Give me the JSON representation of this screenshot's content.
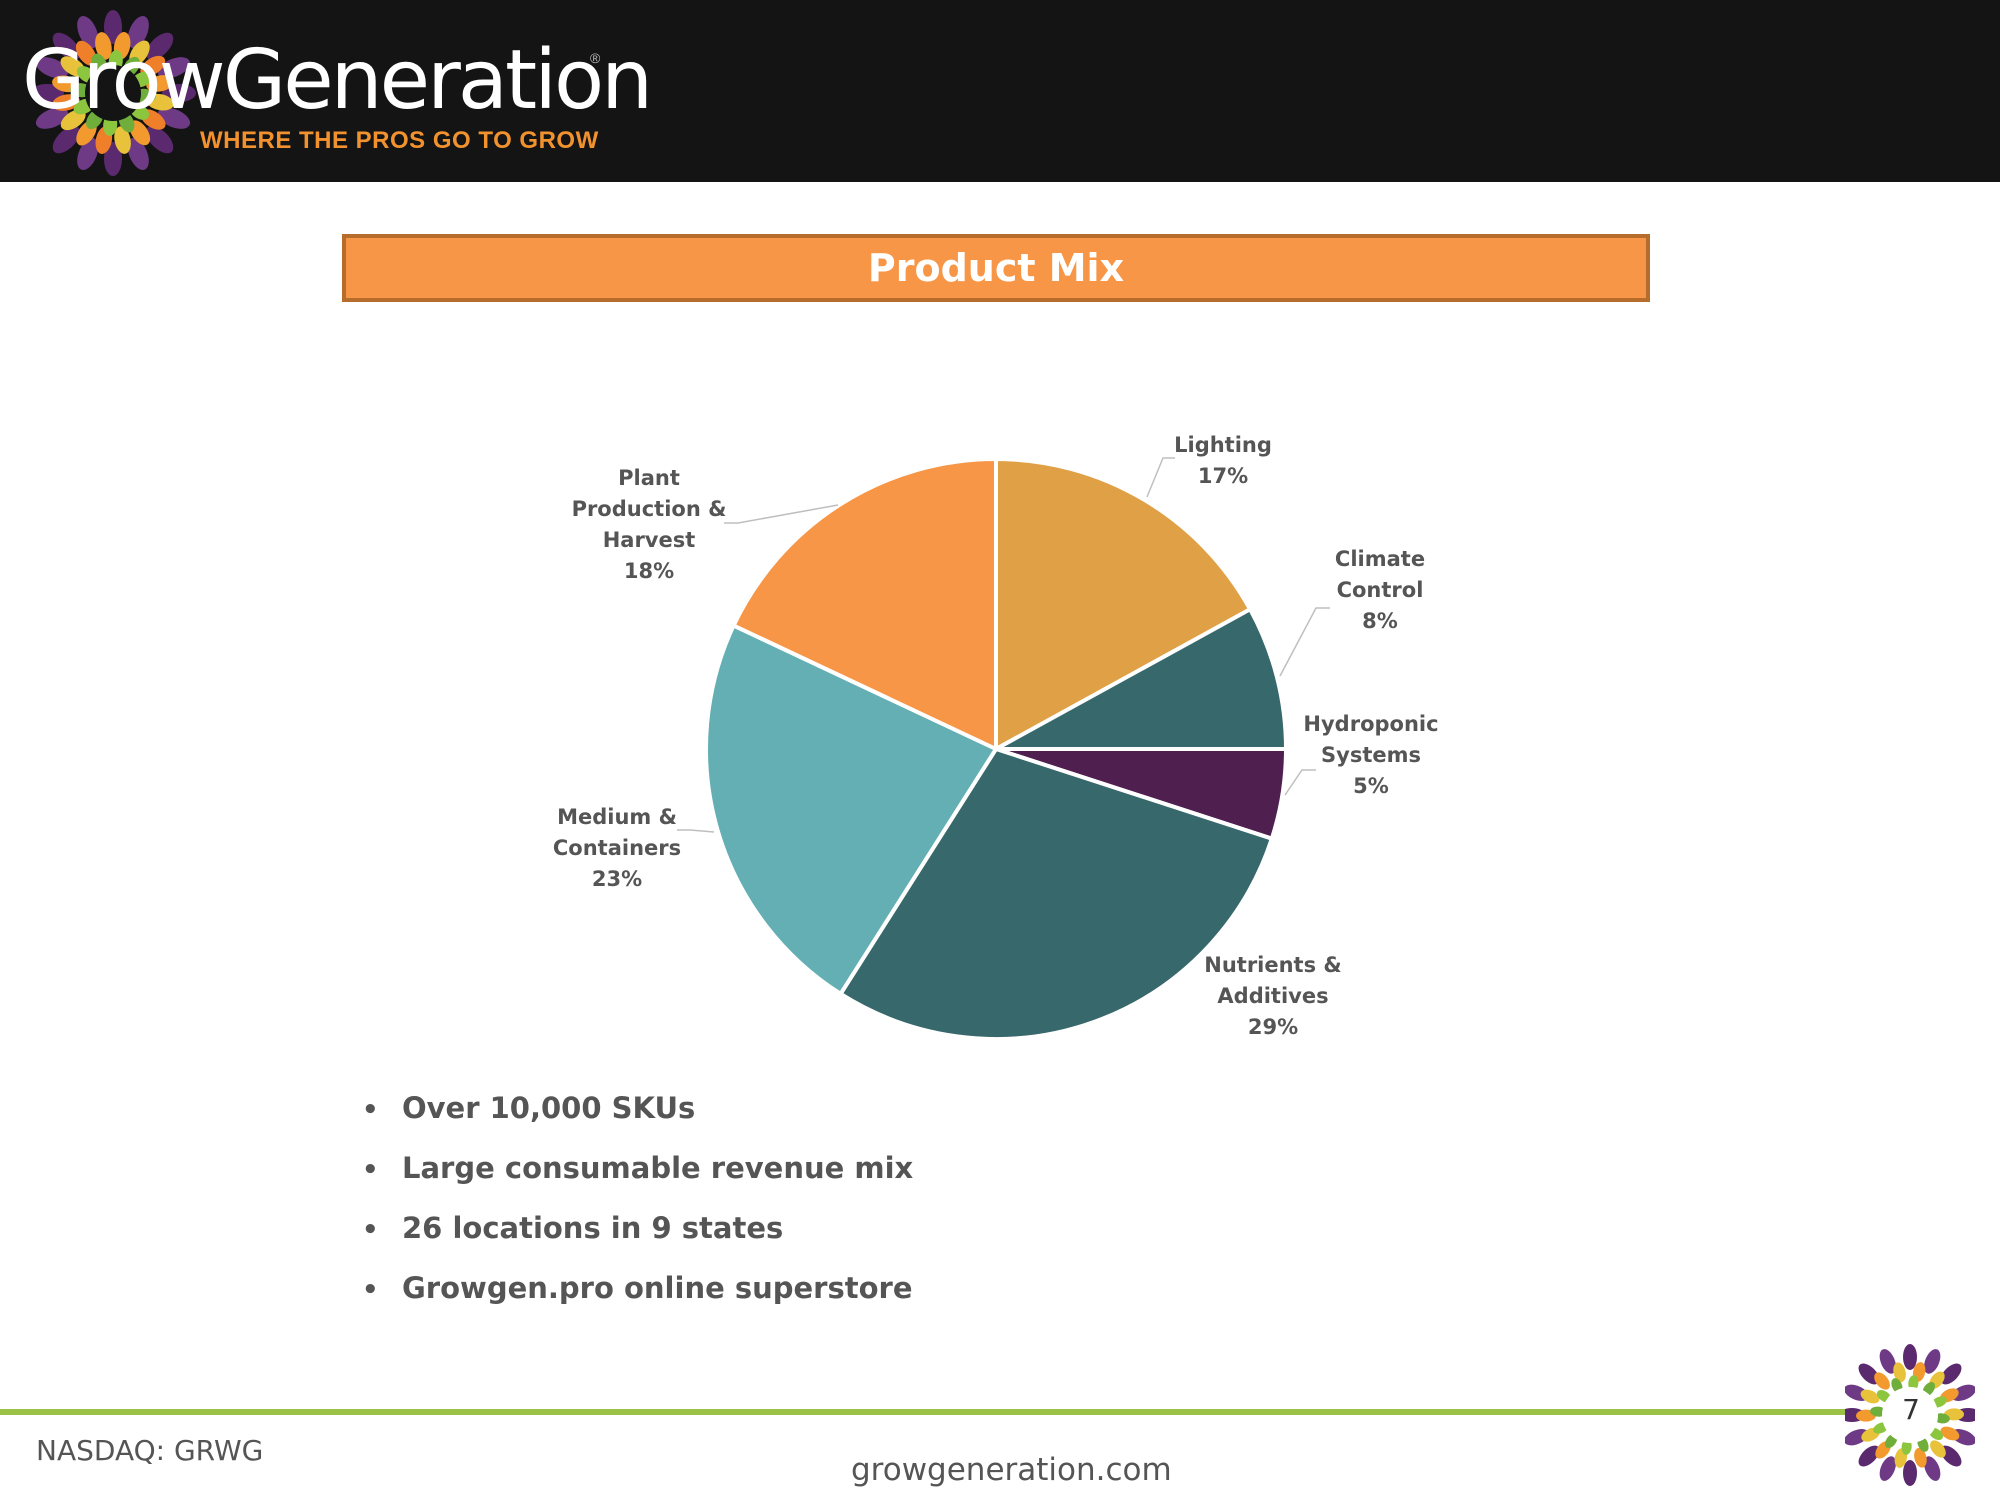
{
  "header": {
    "brand_name": "GrowGeneration",
    "registered_mark": "®",
    "tagline": "WHERE THE PROS GO TO GROW"
  },
  "title": "Product Mix",
  "chart_data": {
    "type": "pie",
    "title": "",
    "slices": [
      {
        "label": "Lighting",
        "label_lines": [
          "Lighting"
        ],
        "value": 17,
        "value_label": "17%",
        "color": "#dfa046"
      },
      {
        "label": "Climate Control",
        "label_lines": [
          "Climate",
          "Control"
        ],
        "value": 8,
        "value_label": "8%",
        "color": "#37686b"
      },
      {
        "label": "Hydroponic Systems",
        "label_lines": [
          "Hydroponic",
          "Systems"
        ],
        "value": 5,
        "value_label": "5%",
        "color": "#4f1f4f"
      },
      {
        "label": "Nutrients & Additives",
        "label_lines": [
          "Nutrients &",
          "Additives"
        ],
        "value": 29,
        "value_label": "29%",
        "color": "#37686b"
      },
      {
        "label": "Medium & Containers",
        "label_lines": [
          "Medium &",
          "Containers"
        ],
        "value": 23,
        "value_label": "23%",
        "color": "#63afb4"
      },
      {
        "label": "Plant Production & Harvest",
        "label_lines": [
          "Plant",
          "Production &",
          "Harvest"
        ],
        "value": 18,
        "value_label": "18%",
        "color": "#f79646"
      }
    ]
  },
  "bullets": [
    "Over 10,000 SKUs",
    "Large consumable revenue mix",
    "26 locations in 9 states",
    "Growgen.pro online superstore"
  ],
  "footer": {
    "ticker": "NASDAQ: GRWG",
    "website": "growgeneration.com",
    "page_number": "7"
  },
  "colors": {
    "brand_orange": "#f79646",
    "accent_green": "#9bc247",
    "header_bg": "#141414"
  }
}
